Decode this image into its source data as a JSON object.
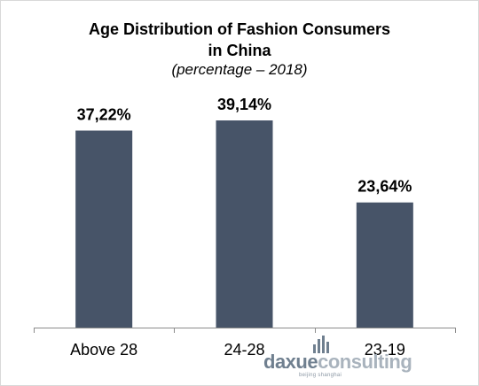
{
  "chart_data": {
    "type": "bar",
    "title_line1": "Age Distribution of Fashion Consumers",
    "title_line2": "in China",
    "subtitle": "(percentage – 2018)",
    "categories": [
      "Above 28",
      "24-28",
      "23-19"
    ],
    "values": [
      37.22,
      39.14,
      23.64
    ],
    "value_labels": [
      "37,22%",
      "39,14%",
      "23,64%"
    ],
    "ylim": [
      0,
      45
    ],
    "bar_color": "#475468",
    "grid": false,
    "xlabel": "",
    "ylabel": ""
  },
  "watermark": {
    "brand_dark": "daxue",
    "brand_light": "consulting",
    "tagline": "beijing shanghai"
  }
}
